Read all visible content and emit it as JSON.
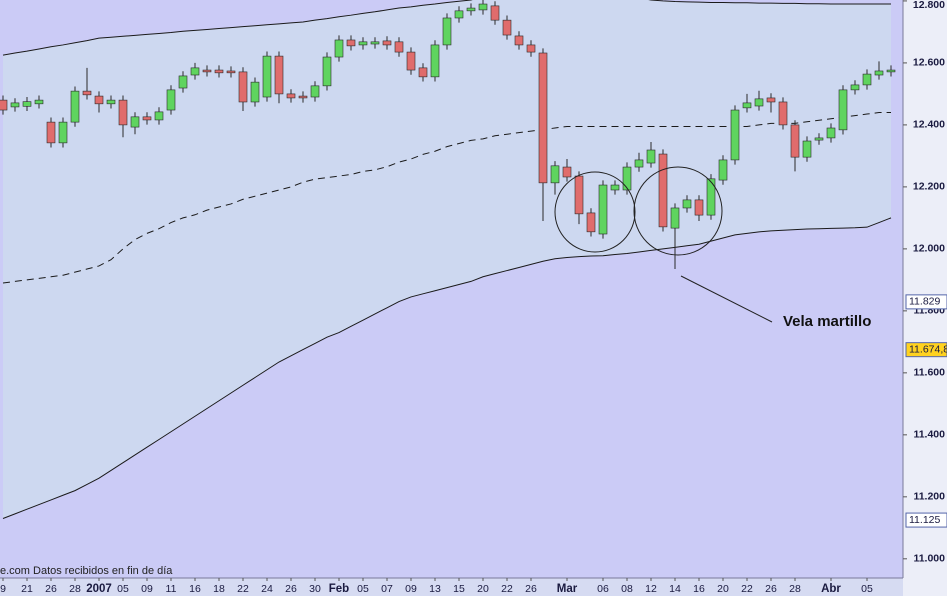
{
  "chart_data": {
    "type": "candlestick",
    "categories": [
      "9",
      null,
      "21",
      null,
      "26",
      null,
      "28",
      null,
      "2007",
      null,
      "05",
      null,
      "09",
      null,
      "11",
      null,
      "16",
      null,
      "18",
      null,
      "22",
      null,
      "24",
      null,
      "26",
      null,
      "30",
      null,
      "Feb",
      null,
      "05",
      null,
      "07",
      null,
      "09",
      null,
      "13",
      null,
      "15",
      null,
      "20",
      null,
      "22",
      null,
      "26",
      null,
      null,
      "Mar",
      null,
      null,
      "06",
      null,
      "08",
      null,
      "12",
      null,
      "14",
      null,
      "16",
      null,
      "20",
      null,
      "22",
      null,
      "26",
      null,
      "28",
      null,
      null,
      "Abr",
      null,
      null,
      "05",
      null,
      null
    ],
    "open": [
      12480,
      12458,
      12460,
      12468,
      12409,
      12342,
      12409,
      12509,
      12493,
      12468,
      12480,
      12393,
      12426,
      12416,
      12448,
      12519,
      12561,
      12577,
      12577,
      12574,
      12571,
      12474,
      12490,
      12622,
      12500,
      12493,
      12490,
      12526,
      12619,
      12674,
      12658,
      12661,
      12671,
      12668,
      12635,
      12584,
      12555,
      12658,
      12745,
      12768,
      12771,
      12784,
      12738,
      12687,
      12658,
      12632,
      12213,
      12264,
      12235,
      12116,
      12048,
      12190,
      12190,
      12264,
      12277,
      12306,
      12067,
      12132,
      12158,
      12109,
      12222,
      12287,
      12455,
      12461,
      12487,
      12474,
      12400,
      12296,
      12351,
      12358,
      12384,
      12513,
      12529,
      12561,
      12571
    ],
    "high": [
      12495,
      12486,
      12490,
      12495,
      12424,
      12424,
      12524,
      12584,
      12508,
      12495,
      12495,
      12441,
      12441,
      12457,
      12528,
      12573,
      12600,
      12592,
      12592,
      12589,
      12586,
      12553,
      12637,
      12637,
      12515,
      12508,
      12541,
      12634,
      12689,
      12689,
      12683,
      12683,
      12686,
      12683,
      12650,
      12599,
      12673,
      12760,
      12783,
      12792,
      12805,
      12799,
      12753,
      12702,
      12673,
      12647,
      12283,
      12290,
      12250,
      12131,
      12221,
      12221,
      12279,
      12310,
      12345,
      12321,
      12147,
      12173,
      12173,
      12241,
      12302,
      12463,
      12500,
      12510,
      12502,
      12489,
      12415,
      12363,
      12373,
      12405,
      12528,
      12544,
      12579,
      12605,
      12592
    ],
    "low": [
      12433,
      12443,
      12445,
      12453,
      12327,
      12327,
      12394,
      12482,
      12440,
      12453,
      12360,
      12370,
      12401,
      12401,
      12433,
      12504,
      12546,
      12556,
      12553,
      12553,
      12445,
      12459,
      12475,
      12470,
      12472,
      12472,
      12475,
      12511,
      12604,
      12640,
      12643,
      12646,
      12643,
      12620,
      12562,
      12540,
      12540,
      12643,
      12730,
      12753,
      12756,
      12723,
      12675,
      12643,
      12620,
      12090,
      12175,
      12217,
      12080,
      12040,
      12033,
      12175,
      12175,
      12249,
      12262,
      12056,
      11935,
      12117,
      12090,
      12094,
      12207,
      12272,
      12440,
      12446,
      12440,
      12385,
      12250,
      12281,
      12336,
      12343,
      12369,
      12498,
      12514,
      12546,
      12556
    ],
    "close": [
      12448,
      12471,
      12475,
      12480,
      12342,
      12409,
      12509,
      12497,
      12468,
      12480,
      12400,
      12426,
      12416,
      12442,
      12513,
      12558,
      12584,
      12571,
      12568,
      12568,
      12474,
      12538,
      12622,
      12500,
      12487,
      12487,
      12526,
      12619,
      12674,
      12655,
      12668,
      12668,
      12658,
      12635,
      12577,
      12555,
      12658,
      12745,
      12768,
      12777,
      12790,
      12738,
      12690,
      12658,
      12635,
      12213,
      12268,
      12232,
      12113,
      12055,
      12206,
      12206,
      12264,
      12287,
      12319,
      12071,
      12132,
      12158,
      12109,
      12226,
      12287,
      12448,
      12471,
      12484,
      12474,
      12400,
      12296,
      12348,
      12358,
      12390,
      12513,
      12529,
      12564,
      12574,
      12577
    ],
    "up_color": "#5fd45f",
    "down_color": "#e06c6c",
    "overlays": [
      {
        "color": "#1a1a1a",
        "dashed": false,
        "values": [
          12625,
          12632,
          12638,
          12645,
          12652,
          12658,
          12665,
          12672,
          12680,
          12683,
          12686,
          12689,
          12692,
          12695,
          12698,
          12702,
          12705,
          12708,
          12711,
          12714,
          12717,
          12720,
          12723,
          12726,
          12729,
          12732,
          12738,
          12743,
          12749,
          12754,
          12760,
          12765,
          12771,
          12777,
          12781,
          12786,
          12790,
          12795,
          12799,
          12803,
          12815,
          12825,
          12835,
          12840,
          12845,
          12848,
          12850,
          12850,
          12848,
          12845,
          12840,
          12830,
          12820,
          12810,
          12803,
          12800,
          12798,
          12797,
          12796,
          12795,
          12795,
          12794,
          12794,
          12793,
          12793,
          12792,
          12792,
          12791,
          12791,
          12790,
          12790,
          12790,
          12790,
          12790,
          12790
        ]
      },
      {
        "color": "#1a1a1a",
        "dashed": true,
        "values": [
          11890,
          11895,
          11900,
          11905,
          11910,
          11915,
          11925,
          11935,
          11945,
          11965,
          12000,
          12030,
          12050,
          12065,
          12085,
          12100,
          12110,
          12125,
          12135,
          12145,
          12160,
          12170,
          12180,
          12190,
          12200,
          12215,
          12225,
          12230,
          12235,
          12240,
          12250,
          12255,
          12265,
          12280,
          12290,
          12305,
          12315,
          12330,
          12340,
          12350,
          12355,
          12365,
          12370,
          12375,
          12380,
          12385,
          12390,
          12395,
          12395,
          12395,
          12395,
          12395,
          12395,
          12395,
          12395,
          12395,
          12395,
          12395,
          12395,
          12395,
          12395,
          12395,
          12395,
          12400,
          12405,
          12405,
          12405,
          12410,
          12415,
          12420,
          12425,
          12430,
          12435,
          12440,
          12440
        ]
      },
      {
        "color": "#1a1a1a",
        "dashed": false,
        "values": [
          11130,
          11145,
          11160,
          11175,
          11190,
          11205,
          11220,
          11240,
          11260,
          11285,
          11310,
          11335,
          11360,
          11385,
          11410,
          11435,
          11460,
          11485,
          11510,
          11535,
          11560,
          11585,
          11610,
          11635,
          11655,
          11675,
          11695,
          11715,
          11730,
          11750,
          11770,
          11790,
          11810,
          11830,
          11845,
          11855,
          11865,
          11875,
          11885,
          11895,
          11910,
          11920,
          11930,
          11940,
          11950,
          11960,
          11968,
          11972,
          11975,
          11977,
          11978,
          11982,
          11985,
          11990,
          11995,
          12000,
          12005,
          12010,
          12015,
          12025,
          12035,
          12045,
          12050,
          12055,
          12058,
          12060,
          12062,
          12064,
          12065,
          12066,
          12067,
          12068,
          12070,
          12085,
          12100
        ]
      }
    ],
    "ylim": [
      10880,
      12803
    ],
    "yticks": [
      {
        "value": 11000,
        "label": "11.000"
      },
      {
        "value": 11200,
        "label": "11.200"
      },
      {
        "value": 11400,
        "label": "11.400"
      },
      {
        "value": 11600,
        "label": "11.600"
      },
      {
        "value": 11800,
        "label": "11.800"
      },
      {
        "value": 12000,
        "label": "12.000"
      },
      {
        "value": 12200,
        "label": "12.200"
      },
      {
        "value": 12400,
        "label": "12.400"
      },
      {
        "value": 12600,
        "label": "12.600"
      },
      {
        "value": 12800,
        "label": "12.800"
      }
    ],
    "price_labels": [
      {
        "value": 11829,
        "label": "11.829",
        "color": "#ffffff"
      },
      {
        "value": 11674.8,
        "label": "11.674,8",
        "color": "#ffd21f"
      },
      {
        "value": 11125,
        "label": "11.125",
        "color": "#ffffff"
      }
    ],
    "annotation": "Vela martillo",
    "source": "e.com Datos recibidos en fin de día"
  }
}
